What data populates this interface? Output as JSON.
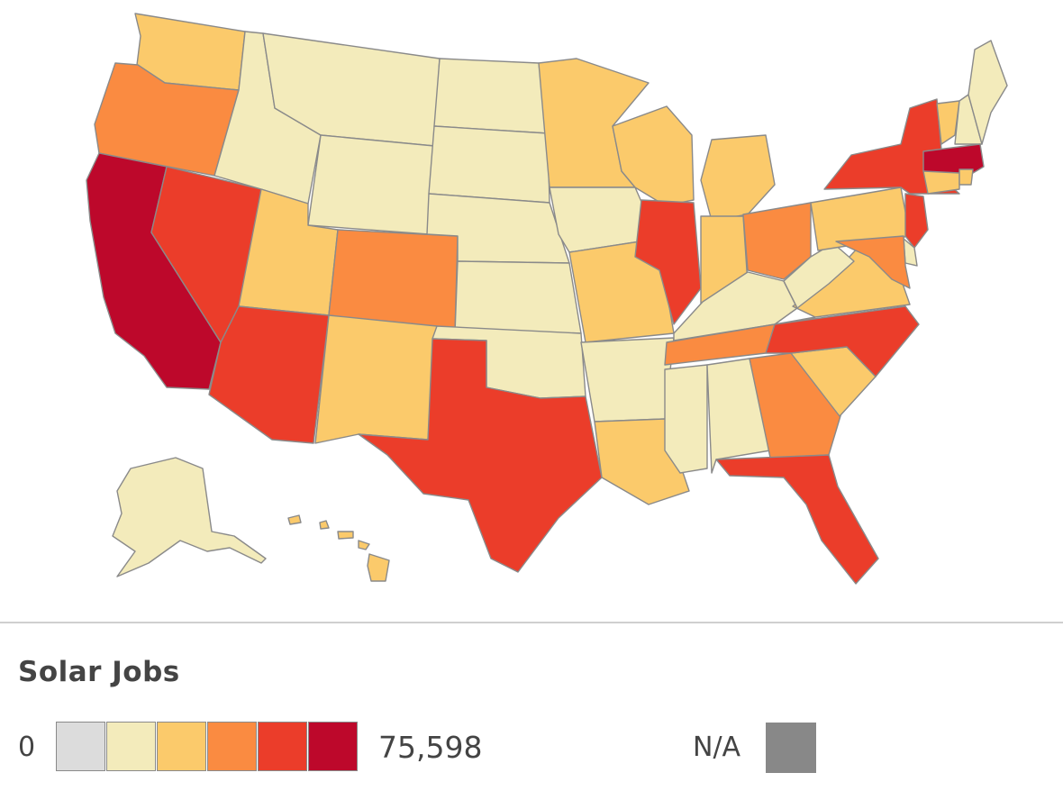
{
  "legend": {
    "title": "Solar Jobs",
    "min_label": "0",
    "max_label": "75,598",
    "na_label": "N/A",
    "scale_colors": [
      "#dcdcdc",
      "#f3ebbb",
      "#fbca6b",
      "#fa8b41",
      "#eb3d2a",
      "#bd082b"
    ],
    "na_color": "#888888"
  },
  "map": {
    "title": "",
    "states": {
      "WA": 2,
      "OR": 3,
      "CA": 5,
      "NV": 4,
      "ID": 1,
      "MT": 1,
      "WY": 1,
      "UT": 2,
      "AZ": 4,
      "CO": 3,
      "NM": 2,
      "ND": 1,
      "SD": 1,
      "NE": 1,
      "KS": 1,
      "OK": 1,
      "TX": 4,
      "MN": 2,
      "IA": 1,
      "MO": 2,
      "AR": 1,
      "LA": 2,
      "WI": 2,
      "IL": 4,
      "MI": 2,
      "IN": 2,
      "OH": 3,
      "KY": 1,
      "TN": 3,
      "MS": 1,
      "AL": 1,
      "GA": 3,
      "FL": 4,
      "SC": 2,
      "NC": 4,
      "VA": 2,
      "WV": 1,
      "PA": 2,
      "NY": 4,
      "ME": 1,
      "NH": 1,
      "VT": 2,
      "MA": 5,
      "CT": 2,
      "RI": 2,
      "NJ": 4,
      "DE": 1,
      "MD": 3,
      "AK": 1,
      "HI": 2
    }
  }
}
